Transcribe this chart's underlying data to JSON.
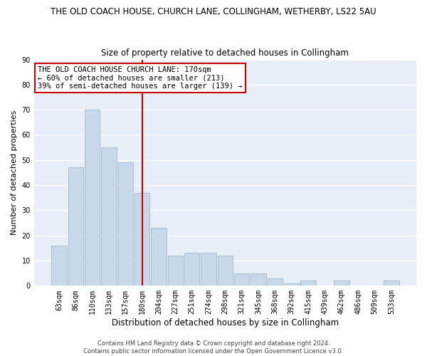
{
  "title": "THE OLD COACH HOUSE, CHURCH LANE, COLLINGHAM, WETHERBY, LS22 5AU",
  "subtitle": "Size of property relative to detached houses in Collingham",
  "xlabel": "Distribution of detached houses by size in Collingham",
  "ylabel": "Number of detached properties",
  "bar_labels": [
    "63sqm",
    "86sqm",
    "110sqm",
    "133sqm",
    "157sqm",
    "180sqm",
    "204sqm",
    "227sqm",
    "251sqm",
    "274sqm",
    "298sqm",
    "321sqm",
    "345sqm",
    "368sqm",
    "392sqm",
    "415sqm",
    "439sqm",
    "462sqm",
    "486sqm",
    "509sqm",
    "533sqm"
  ],
  "bar_values": [
    16,
    47,
    70,
    55,
    49,
    37,
    23,
    12,
    13,
    13,
    12,
    5,
    5,
    3,
    1,
    2,
    0,
    2,
    0,
    0,
    2
  ],
  "bar_color": "#c8d8e8",
  "bar_edge_color": "#a0b8cc",
  "vline_x": 5,
  "vline_color": "#cc0000",
  "ylim": [
    0,
    90
  ],
  "yticks": [
    0,
    10,
    20,
    30,
    40,
    50,
    60,
    70,
    80,
    90
  ],
  "annotation_title": "THE OLD COACH HOUSE CHURCH LANE: 170sqm",
  "annotation_line1": "← 60% of detached houses are smaller (213)",
  "annotation_line2": "39% of semi-detached houses are larger (139) →",
  "annotation_box_color": "#ffffff",
  "annotation_border_color": "#cc0000",
  "footer_line1": "Contains HM Land Registry data © Crown copyright and database right 2024.",
  "footer_line2": "Contains public sector information licensed under the Open Government Licence v3.0.",
  "background_color": "#e8eef8",
  "grid_color": "#ffffff",
  "title_fontsize": 8.5,
  "subtitle_fontsize": 8.5,
  "xlabel_fontsize": 8.5,
  "ylabel_fontsize": 8,
  "tick_fontsize": 7,
  "ann_fontsize": 7.5,
  "footer_fontsize": 6
}
